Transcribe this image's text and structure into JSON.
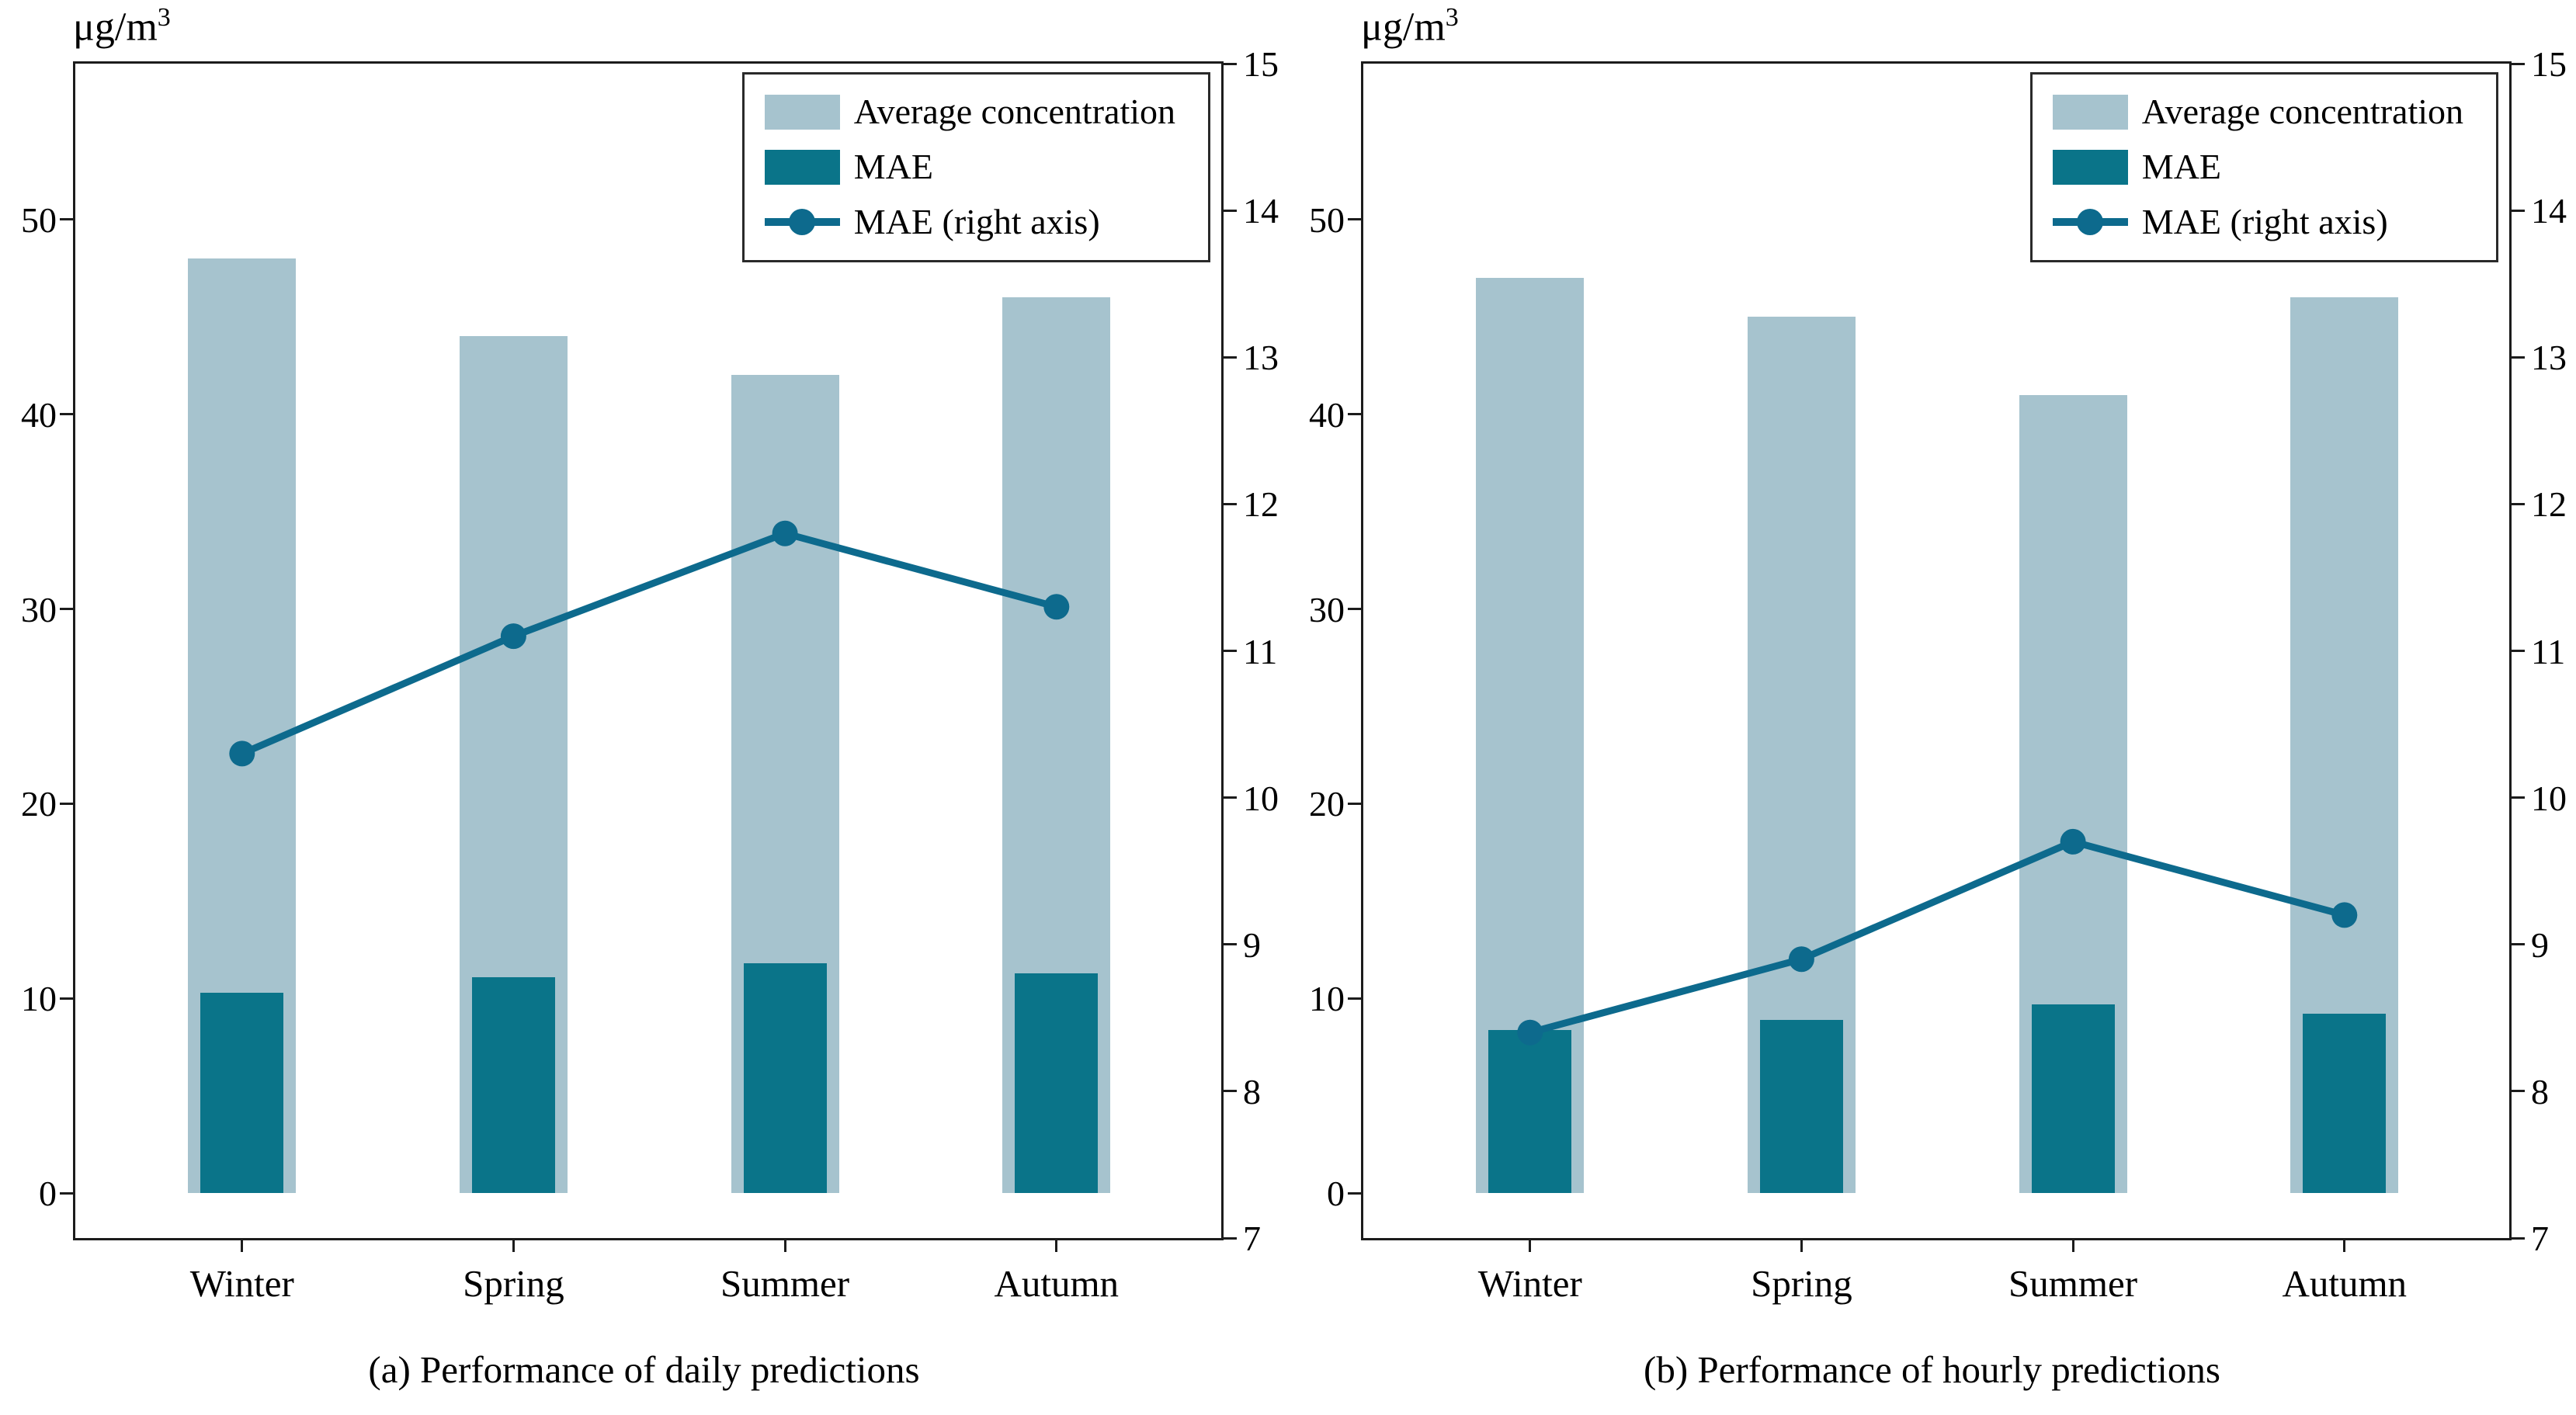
{
  "figure": {
    "unit": {
      "base": "μg/m",
      "sup": "3"
    },
    "colors": {
      "avg_bar": "#a6c3ce",
      "mae_bar": "#0a7489",
      "line": "#0d6a8d",
      "spine": "#1c1c1c"
    }
  },
  "chart_data": [
    {
      "type": "bar+line",
      "caption": "(a) Performance of daily predictions",
      "categories": [
        "Winter",
        "Spring",
        "Summer",
        "Autumn"
      ],
      "series": [
        {
          "name": "Average concentration",
          "type": "bar",
          "axis": "left",
          "values": [
            48,
            44,
            42,
            46
          ]
        },
        {
          "name": "MAE",
          "type": "bar",
          "axis": "left",
          "values": [
            10.3,
            11.1,
            11.8,
            11.3
          ]
        },
        {
          "name": "MAE (right axis)",
          "type": "line",
          "axis": "right",
          "values": [
            10.3,
            11.1,
            11.8,
            11.3
          ]
        }
      ],
      "left_axis": {
        "unit": "μg/m³",
        "ticks": [
          0,
          10,
          20,
          30,
          40,
          50
        ],
        "range": [
          -2.3,
          58
        ]
      },
      "right_axis": {
        "ticks": [
          7,
          8,
          9,
          10,
          11,
          12,
          13,
          14,
          15
        ],
        "range": [
          7,
          15
        ]
      },
      "legend_position": "upper right",
      "grid": false
    },
    {
      "type": "bar+line",
      "caption": "(b) Performance of hourly predictions",
      "categories": [
        "Winter",
        "Spring",
        "Summer",
        "Autumn"
      ],
      "series": [
        {
          "name": "Average concentration",
          "type": "bar",
          "axis": "left",
          "values": [
            47,
            45,
            41,
            46
          ]
        },
        {
          "name": "MAE",
          "type": "bar",
          "axis": "left",
          "values": [
            8.4,
            8.9,
            9.7,
            9.2
          ]
        },
        {
          "name": "MAE (right axis)",
          "type": "line",
          "axis": "right",
          "values": [
            8.4,
            8.9,
            9.7,
            9.2
          ]
        }
      ],
      "left_axis": {
        "unit": "μg/m³",
        "ticks": [
          0,
          10,
          20,
          30,
          40,
          50
        ],
        "range": [
          -2.3,
          58
        ]
      },
      "right_axis": {
        "ticks": [
          7,
          8,
          9,
          10,
          11,
          12,
          13,
          14,
          15
        ],
        "range": [
          7,
          15
        ]
      },
      "legend_position": "upper right",
      "grid": false
    }
  ]
}
